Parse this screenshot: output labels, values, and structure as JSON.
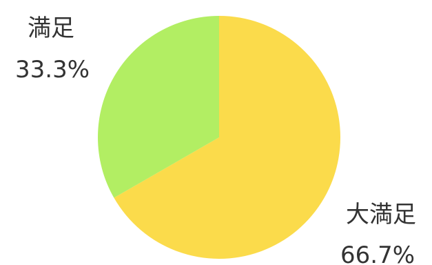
{
  "chart_data": {
    "type": "pie",
    "slices": [
      {
        "name": "大満足",
        "value": 66.7,
        "label": "66.7%",
        "color": "#FBDB4B"
      },
      {
        "name": "満足",
        "value": 33.3,
        "label": "33.3%",
        "color": "#B2EE63"
      }
    ],
    "start_angle": "12 o'clock",
    "direction": "clockwise"
  }
}
